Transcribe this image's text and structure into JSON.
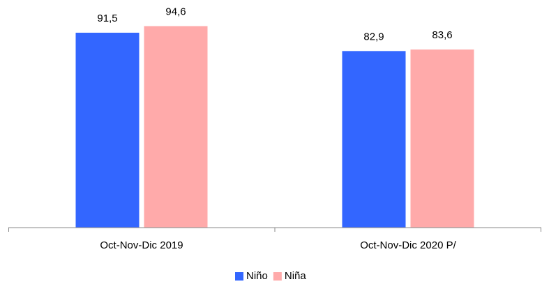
{
  "chart_data": {
    "type": "bar",
    "categories": [
      "Oct-Nov-Dic 2019",
      "Oct-Nov-Dic 2020 P/"
    ],
    "series": [
      {
        "name": "Niño",
        "color": "#3366ff",
        "values": [
          91.5,
          82.9
        ],
        "value_labels": [
          "91,5",
          "82,9"
        ]
      },
      {
        "name": "Niña",
        "color": "#ffaaaa",
        "values": [
          94.6,
          83.6
        ],
        "value_labels": [
          "94,6",
          "83,6"
        ]
      }
    ],
    "ylim": [
      0,
      100
    ],
    "legend": "bottom"
  }
}
